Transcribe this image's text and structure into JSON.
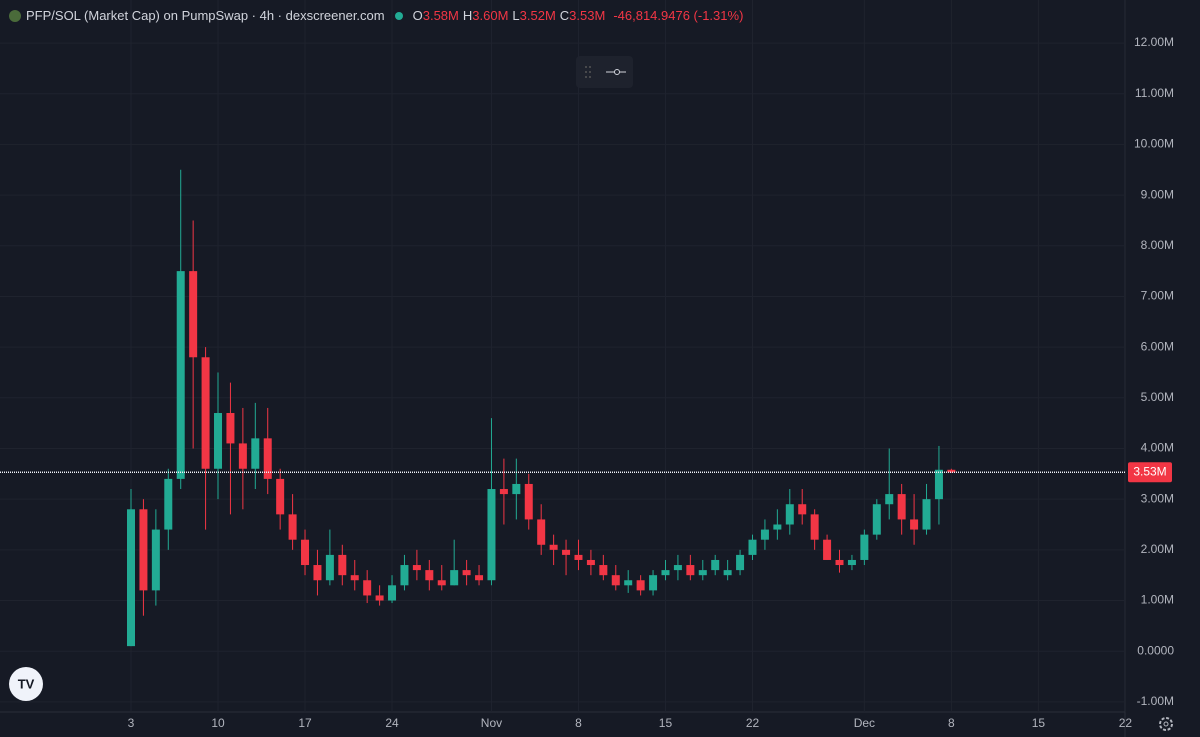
{
  "header": {
    "title": "PFP/SOL (Market Cap) on PumpSwap · 4h · dexscreener.com",
    "legend": [
      {
        "label": "O",
        "value": "3.58M"
      },
      {
        "label": "H",
        "value": "3.60M"
      },
      {
        "label": "L",
        "value": "3.52M"
      },
      {
        "label": "C",
        "value": "3.53M"
      }
    ],
    "change": "-46,814.9476 (-1.31%)"
  },
  "chart_data": {
    "type": "candlestick",
    "categories": [
      "3",
      null,
      null,
      null,
      null,
      null,
      null,
      "10",
      null,
      null,
      null,
      null,
      null,
      null,
      "17",
      null,
      null,
      null,
      null,
      null,
      null,
      "24",
      null,
      null,
      null,
      null,
      null,
      null,
      null,
      "Nov",
      null,
      null,
      null,
      null,
      null,
      null,
      "8",
      null,
      null,
      null,
      null,
      null,
      null,
      "15",
      null,
      null,
      null,
      null,
      null,
      null,
      "22",
      null,
      null,
      null,
      null,
      null,
      null,
      null,
      null,
      "Dec",
      null,
      null,
      null,
      null,
      null,
      null,
      "8",
      null,
      null,
      null,
      null,
      null,
      null,
      "15",
      null,
      null,
      null,
      null,
      null,
      null,
      "22"
    ],
    "open": [
      0.1,
      2.8,
      1.2,
      2.4,
      3.4,
      7.5,
      5.8,
      3.6,
      4.7,
      4.1,
      3.6,
      4.2,
      3.4,
      2.7,
      2.2,
      1.7,
      1.4,
      1.9,
      1.5,
      1.4,
      1.1,
      1.0,
      1.3,
      1.7,
      1.6,
      1.4,
      1.3,
      1.6,
      1.5,
      1.4,
      3.2,
      3.1,
      3.3,
      2.6,
      2.1,
      2.0,
      1.9,
      1.8,
      1.7,
      1.5,
      1.3,
      1.4,
      1.2,
      1.5,
      1.6,
      1.7,
      1.5,
      1.6,
      1.5,
      1.6,
      1.9,
      2.2,
      2.4,
      2.5,
      2.9,
      2.7,
      2.2,
      1.8,
      1.7,
      1.8,
      2.3,
      2.9,
      3.1,
      2.6,
      2.4,
      3.0,
      3.58,
      null,
      null,
      null,
      null,
      null,
      null,
      null,
      null,
      null,
      null,
      null,
      null,
      null,
      null
    ],
    "high": [
      3.2,
      3.0,
      2.8,
      3.6,
      9.5,
      8.5,
      6.0,
      5.5,
      5.3,
      4.8,
      4.9,
      4.8,
      3.6,
      3.1,
      2.4,
      2.0,
      2.4,
      2.1,
      1.8,
      1.6,
      1.3,
      1.5,
      1.9,
      2.0,
      1.8,
      1.7,
      2.2,
      1.8,
      1.7,
      4.6,
      3.8,
      3.8,
      3.5,
      2.9,
      2.3,
      2.2,
      2.2,
      2.0,
      1.9,
      1.7,
      1.6,
      1.5,
      1.6,
      1.8,
      1.9,
      1.9,
      1.8,
      1.9,
      1.8,
      2.0,
      2.3,
      2.6,
      2.8,
      3.2,
      3.2,
      2.8,
      2.3,
      2.0,
      1.9,
      2.4,
      3.0,
      4.0,
      3.3,
      3.1,
      3.3,
      4.05,
      3.6,
      null,
      null,
      null,
      null,
      null,
      null,
      null,
      null,
      null,
      null,
      null,
      null,
      null,
      null
    ],
    "low": [
      0.1,
      0.7,
      0.9,
      2.0,
      3.2,
      4.0,
      2.4,
      3.0,
      2.7,
      2.8,
      3.2,
      3.1,
      2.4,
      2.0,
      1.5,
      1.1,
      1.3,
      1.3,
      1.2,
      0.95,
      0.9,
      0.95,
      1.2,
      1.4,
      1.2,
      1.2,
      1.3,
      1.3,
      1.3,
      1.3,
      2.5,
      2.6,
      2.4,
      1.9,
      1.7,
      1.5,
      1.6,
      1.5,
      1.4,
      1.2,
      1.15,
      1.1,
      1.1,
      1.4,
      1.4,
      1.4,
      1.4,
      1.5,
      1.4,
      1.5,
      1.8,
      2.0,
      2.2,
      2.3,
      2.5,
      2.0,
      1.8,
      1.55,
      1.6,
      1.7,
      2.2,
      2.6,
      2.3,
      2.1,
      2.3,
      2.5,
      3.52,
      null,
      null,
      null,
      null,
      null,
      null,
      null,
      null,
      null,
      null,
      null,
      null,
      null,
      null
    ],
    "close": [
      2.8,
      1.2,
      2.4,
      3.4,
      7.5,
      5.8,
      3.6,
      4.7,
      4.1,
      3.6,
      4.2,
      3.4,
      2.7,
      2.2,
      1.7,
      1.4,
      1.9,
      1.5,
      1.4,
      1.1,
      1.0,
      1.3,
      1.7,
      1.6,
      1.4,
      1.3,
      1.6,
      1.5,
      1.4,
      3.2,
      3.1,
      3.3,
      2.6,
      2.1,
      2.0,
      1.9,
      1.8,
      1.7,
      1.5,
      1.3,
      1.4,
      1.2,
      1.5,
      1.6,
      1.7,
      1.5,
      1.6,
      1.8,
      1.6,
      1.9,
      2.2,
      2.4,
      2.5,
      2.9,
      2.7,
      2.2,
      1.8,
      1.7,
      1.8,
      2.3,
      2.9,
      3.1,
      2.6,
      2.4,
      3.0,
      3.58,
      3.53,
      null,
      null,
      null,
      null,
      null,
      null,
      null,
      null,
      null,
      null,
      null,
      null,
      null,
      null
    ],
    "colors": {
      "up": "#22ab94",
      "down": "#f23645"
    },
    "ylim": [
      -1.2,
      12.85
    ],
    "yticks": [
      {
        "value": 12,
        "label": "12.00M"
      },
      {
        "value": 11,
        "label": "11.00M"
      },
      {
        "value": 10,
        "label": "10.00M"
      },
      {
        "value": 9,
        "label": "9.00M"
      },
      {
        "value": 8,
        "label": "8.00M"
      },
      {
        "value": 7,
        "label": "7.00M"
      },
      {
        "value": 6,
        "label": "6.00M"
      },
      {
        "value": 5,
        "label": "5.00M"
      },
      {
        "value": 4,
        "label": "4.00M"
      },
      {
        "value": 3,
        "label": "3.00M"
      },
      {
        "value": 2,
        "label": "2.00M"
      },
      {
        "value": 1,
        "label": "1.00M"
      },
      {
        "value": 0,
        "label": "0.0000"
      },
      {
        "value": -1,
        "label": "-1.00M"
      }
    ],
    "grid": true,
    "last_price": {
      "value": 3.53,
      "label": "3.53M"
    }
  }
}
